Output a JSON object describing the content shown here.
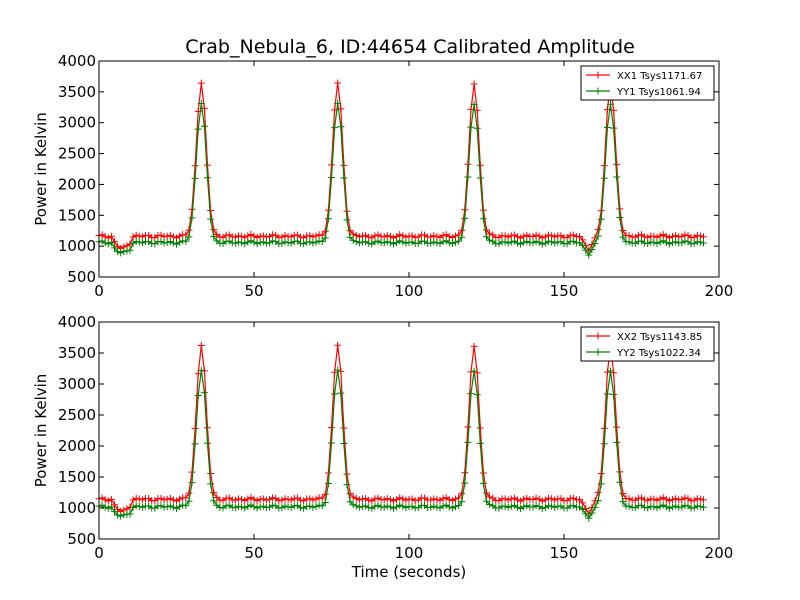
{
  "title": "Crab_Nebula_6, ID:44654 Calibrated Amplitude",
  "chart_data": [
    {
      "type": "line",
      "xlabel": "",
      "ylabel": "Power in Kelvin",
      "xlim": [
        0,
        200
      ],
      "ylim": [
        500,
        4000
      ],
      "xticks": [
        "0",
        "50",
        "100",
        "150",
        "200"
      ],
      "yticks": [
        "500",
        "1000",
        "1500",
        "2000",
        "2500",
        "3000",
        "3500",
        "4000"
      ],
      "grid": false,
      "legend_position": "top-right",
      "x_sampling": {
        "start": 0,
        "end": 195,
        "step": 1
      },
      "peak_times": [
        33,
        77,
        121,
        165
      ],
      "series": [
        {
          "name": "XX1 Tsys1171.67",
          "color": "#ff0000",
          "marker": "+",
          "baseline": 1160,
          "peak": 3650,
          "dip_start_value": 1060,
          "dip_end_value": 950
        },
        {
          "name": "YY1 Tsys1061.94",
          "color": "#008000",
          "marker": "+",
          "baseline": 1060,
          "peak": 3320,
          "dip_start_value": 960,
          "dip_end_value": 880
        }
      ]
    },
    {
      "type": "line",
      "xlabel": "Time (seconds)",
      "ylabel": "Power in Kelvin",
      "xlim": [
        0,
        200
      ],
      "ylim": [
        500,
        4000
      ],
      "xticks": [
        "0",
        "50",
        "100",
        "150",
        "200"
      ],
      "yticks": [
        "500",
        "1000",
        "1500",
        "2000",
        "2500",
        "3000",
        "3500",
        "4000"
      ],
      "grid": false,
      "legend_position": "top-right",
      "x_sampling": {
        "start": 0,
        "end": 195,
        "step": 1
      },
      "peak_times": [
        33,
        77,
        121,
        165
      ],
      "series": [
        {
          "name": "XX2 Tsys1143.85",
          "color": "#ff0000",
          "marker": "+",
          "baseline": 1140,
          "peak": 3630,
          "dip_start_value": 1040,
          "dip_end_value": 930
        },
        {
          "name": "YY2 Tsys1022.34",
          "color": "#008000",
          "marker": "+",
          "baseline": 1020,
          "peak": 3230,
          "dip_start_value": 930,
          "dip_end_value": 860
        }
      ]
    }
  ]
}
